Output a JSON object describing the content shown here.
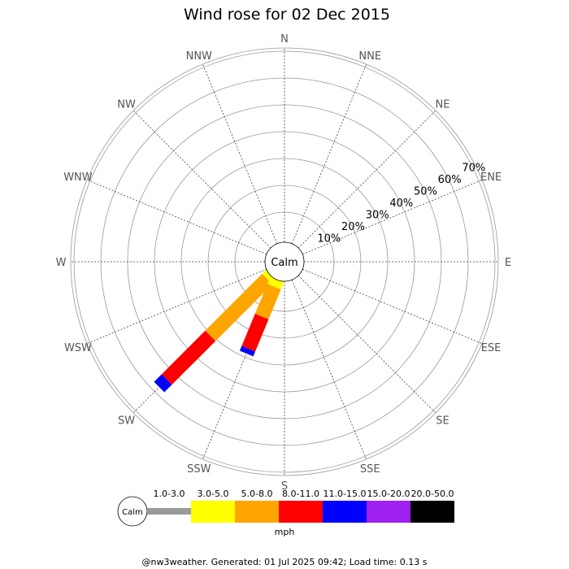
{
  "chart_data": {
    "type": "windrose",
    "title": "Wind rose for 02 Dec 2015",
    "directions": [
      "N",
      "NNE",
      "NE",
      "ENE",
      "E",
      "ESE",
      "SE",
      "SSE",
      "S",
      "SSW",
      "SW",
      "WSW",
      "W",
      "WNW",
      "NW",
      "NNW"
    ],
    "percent_rings": [
      "10%",
      "20%",
      "30%",
      "40%",
      "50%",
      "60%",
      "70%"
    ],
    "ring_values": [
      10,
      20,
      30,
      40,
      50,
      60,
      70
    ],
    "calm_label": "Calm",
    "speed_bins": [
      {
        "label": "1.0-3.0",
        "color": "#999999"
      },
      {
        "label": "3.0-5.0",
        "color": "#ffff00"
      },
      {
        "label": "5.0-8.0",
        "color": "#ffa500"
      },
      {
        "label": "8.0-11.0",
        "color": "#ff0000"
      },
      {
        "label": "11.0-15.0",
        "color": "#0000ff"
      },
      {
        "label": "15.0-20.0",
        "color": "#a020f0"
      },
      {
        "label": "20.0-50.0",
        "color": "#000000"
      }
    ],
    "unit": "mph",
    "sectors": [
      {
        "direction": "SW",
        "cumulative_percent": [
          0,
          3,
          33,
          56,
          60,
          60,
          60
        ]
      },
      {
        "direction": "SSW",
        "cumulative_percent": [
          0,
          4,
          16,
          29,
          31,
          31,
          31
        ]
      }
    ]
  },
  "footer": "@nw3weather. Generated: 01 Jul 2025 09:42; Load time: 0.13 s"
}
